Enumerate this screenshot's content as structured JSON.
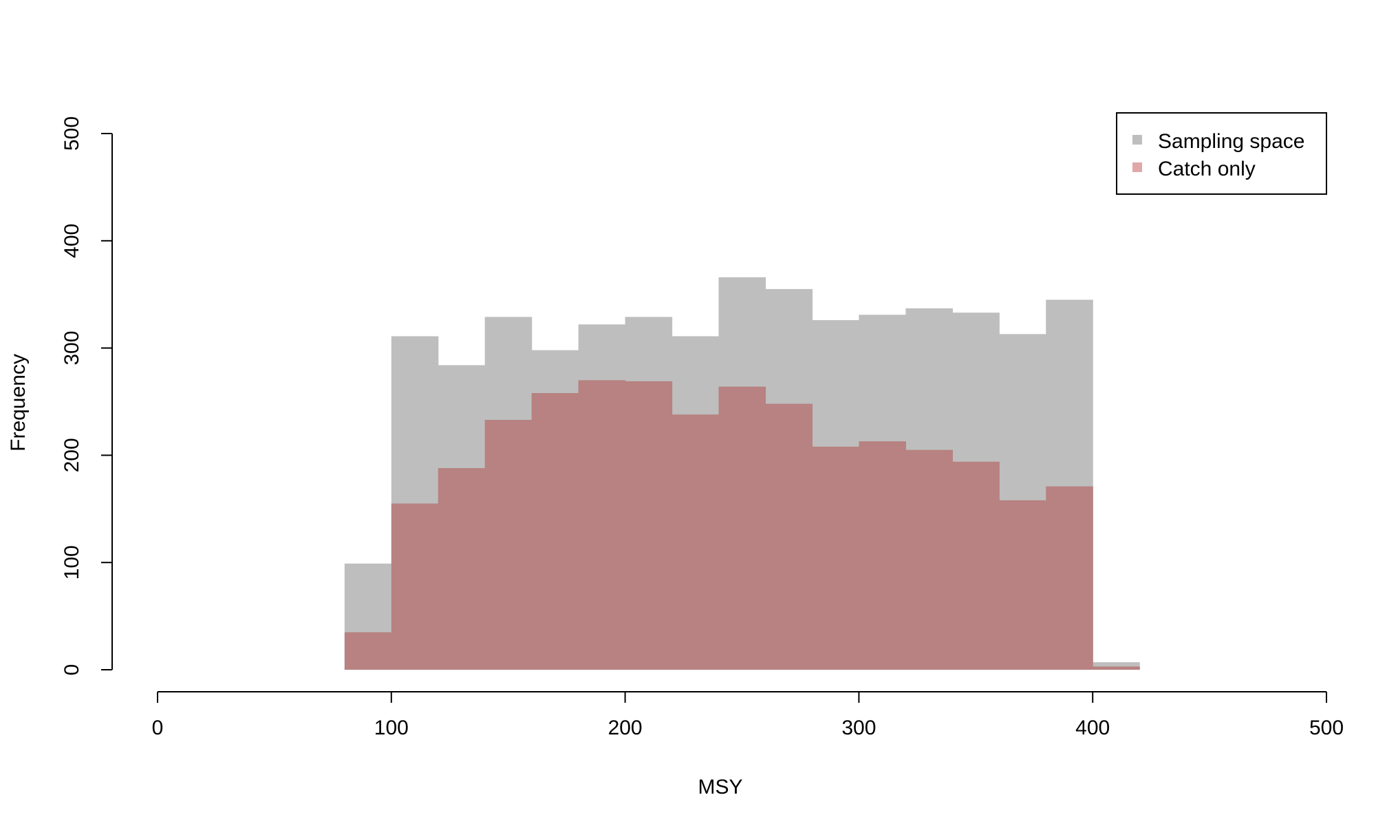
{
  "chart_data": {
    "type": "bar",
    "histogram": true,
    "bin_width": 20,
    "xlabel": "MSY",
    "ylabel": "Frequency",
    "xlim": [
      0,
      500
    ],
    "ylim": [
      0,
      500
    ],
    "x_ticks": [
      0,
      100,
      200,
      300,
      400,
      500
    ],
    "y_ticks": [
      0,
      100,
      200,
      300,
      400,
      500
    ],
    "grid": false,
    "legend_position": "top-right",
    "series": [
      {
        "name": "Sampling space",
        "color": "#bebebe",
        "bins": [
          {
            "x0": 80,
            "x1": 100,
            "count": 99
          },
          {
            "x0": 100,
            "x1": 120,
            "count": 311
          },
          {
            "x0": 120,
            "x1": 140,
            "count": 284
          },
          {
            "x0": 140,
            "x1": 160,
            "count": 329
          },
          {
            "x0": 160,
            "x1": 180,
            "count": 298
          },
          {
            "x0": 180,
            "x1": 200,
            "count": 322
          },
          {
            "x0": 200,
            "x1": 220,
            "count": 329
          },
          {
            "x0": 220,
            "x1": 240,
            "count": 311
          },
          {
            "x0": 240,
            "x1": 260,
            "count": 366
          },
          {
            "x0": 260,
            "x1": 280,
            "count": 355
          },
          {
            "x0": 280,
            "x1": 300,
            "count": 326
          },
          {
            "x0": 300,
            "x1": 320,
            "count": 331
          },
          {
            "x0": 320,
            "x1": 340,
            "count": 337
          },
          {
            "x0": 340,
            "x1": 360,
            "count": 333
          },
          {
            "x0": 360,
            "x1": 380,
            "count": 313
          },
          {
            "x0": 380,
            "x1": 400,
            "count": 345
          },
          {
            "x0": 400,
            "x1": 420,
            "count": 7
          }
        ]
      },
      {
        "name": "Catch only",
        "color": "#b78281",
        "legend_color": "#e0a8a8",
        "bins": [
          {
            "x0": 80,
            "x1": 100,
            "count": 35
          },
          {
            "x0": 100,
            "x1": 120,
            "count": 155
          },
          {
            "x0": 120,
            "x1": 140,
            "count": 188
          },
          {
            "x0": 140,
            "x1": 160,
            "count": 233
          },
          {
            "x0": 160,
            "x1": 180,
            "count": 258
          },
          {
            "x0": 180,
            "x1": 200,
            "count": 270
          },
          {
            "x0": 200,
            "x1": 220,
            "count": 269
          },
          {
            "x0": 220,
            "x1": 240,
            "count": 238
          },
          {
            "x0": 240,
            "x1": 260,
            "count": 264
          },
          {
            "x0": 260,
            "x1": 280,
            "count": 248
          },
          {
            "x0": 280,
            "x1": 300,
            "count": 208
          },
          {
            "x0": 300,
            "x1": 320,
            "count": 213
          },
          {
            "x0": 320,
            "x1": 340,
            "count": 205
          },
          {
            "x0": 340,
            "x1": 360,
            "count": 194
          },
          {
            "x0": 360,
            "x1": 380,
            "count": 158
          },
          {
            "x0": 380,
            "x1": 400,
            "count": 171
          },
          {
            "x0": 400,
            "x1": 420,
            "count": 3
          }
        ]
      }
    ]
  }
}
